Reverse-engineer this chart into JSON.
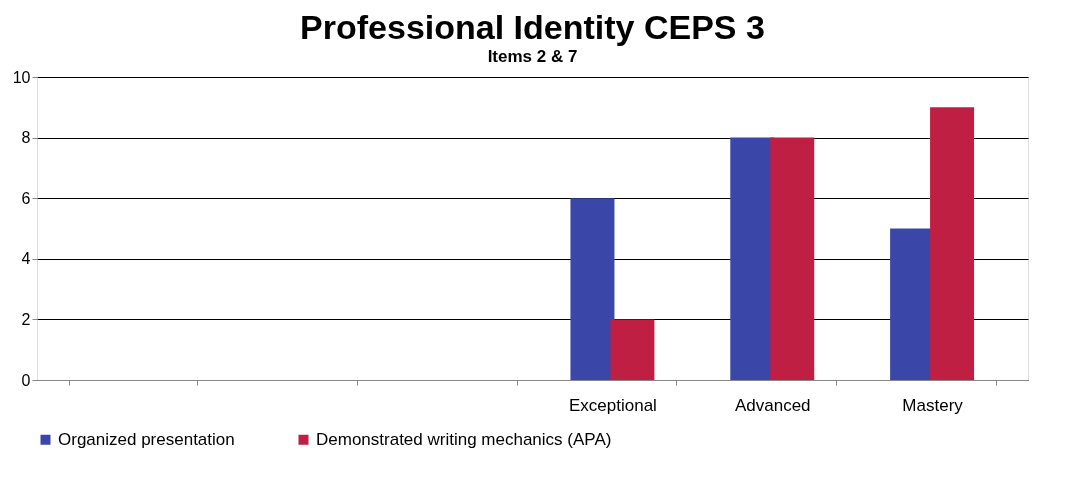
{
  "chart_data": {
    "type": "bar",
    "title": "Professional Identity CEPS 3",
    "subtitle": "Items 2 & 7",
    "categories": [
      null,
      null,
      null,
      "Exceptional",
      "Advanced",
      "Mastery"
    ],
    "series": [
      {
        "name": "Organized presentation",
        "color": "#3a47a8",
        "values": [
          null,
          null,
          null,
          6,
          8,
          5
        ]
      },
      {
        "name": "Demonstrated writing mechanics (APA)",
        "color": "#c01f44",
        "values": [
          null,
          null,
          null,
          2,
          8,
          9
        ]
      }
    ],
    "ylim": [
      0,
      10
    ],
    "yticks": [
      0,
      2,
      4,
      6,
      8,
      10
    ],
    "grid": "y",
    "legend": "bottom"
  }
}
